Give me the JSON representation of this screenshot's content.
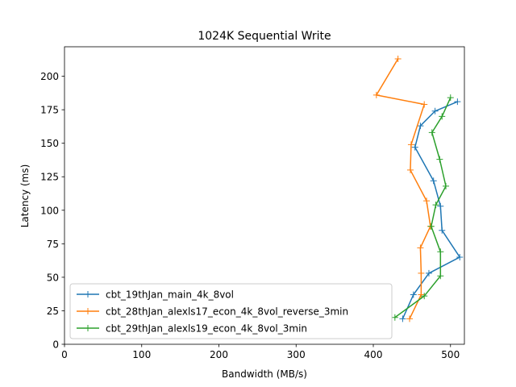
{
  "chart_data": {
    "type": "line",
    "title": "1024K  Sequential Write",
    "xlabel": "Bandwidth (MB/s)",
    "ylabel": "Latency (ms)",
    "xlim": [
      0,
      518
    ],
    "ylim": [
      0,
      222
    ],
    "xticks": [
      0,
      100,
      200,
      300,
      400,
      500
    ],
    "yticks": [
      0,
      25,
      50,
      75,
      100,
      125,
      150,
      175,
      200
    ],
    "grid": false,
    "legend_position": "lower-center",
    "series": [
      {
        "name": "cbt_19thJan_main_4k_8vol",
        "color": "#1f77b4",
        "points": [
          {
            "x": 438,
            "y": 19
          },
          {
            "x": 452,
            "y": 37
          },
          {
            "x": 472,
            "y": 53
          },
          {
            "x": 512,
            "y": 65
          },
          {
            "x": 489,
            "y": 85
          },
          {
            "x": 487,
            "y": 103
          },
          {
            "x": 478,
            "y": 122
          },
          {
            "x": 454,
            "y": 147
          },
          {
            "x": 461,
            "y": 163
          },
          {
            "x": 480,
            "y": 174
          },
          {
            "x": 509,
            "y": 181
          }
        ]
      },
      {
        "name": "cbt_28thJan_alexls17_econ_4k_8vol_reverse_3min",
        "color": "#ff7f0e",
        "points": [
          {
            "x": 447,
            "y": 19
          },
          {
            "x": 462,
            "y": 37
          },
          {
            "x": 462,
            "y": 53
          },
          {
            "x": 461,
            "y": 72
          },
          {
            "x": 474,
            "y": 88
          },
          {
            "x": 469,
            "y": 107
          },
          {
            "x": 448,
            "y": 130
          },
          {
            "x": 449,
            "y": 149
          },
          {
            "x": 466,
            "y": 179
          },
          {
            "x": 404,
            "y": 186
          },
          {
            "x": 432,
            "y": 213
          }
        ]
      },
      {
        "name": "cbt_29thJan_alexls19_econ_4k_8vol_3min",
        "color": "#2ca02c",
        "points": [
          {
            "x": 428,
            "y": 20
          },
          {
            "x": 466,
            "y": 36
          },
          {
            "x": 487,
            "y": 51
          },
          {
            "x": 487,
            "y": 69
          },
          {
            "x": 475,
            "y": 88
          },
          {
            "x": 481,
            "y": 104
          },
          {
            "x": 494,
            "y": 118
          },
          {
            "x": 486,
            "y": 138
          },
          {
            "x": 476,
            "y": 158
          },
          {
            "x": 489,
            "y": 170
          },
          {
            "x": 500,
            "y": 184
          }
        ]
      }
    ]
  }
}
